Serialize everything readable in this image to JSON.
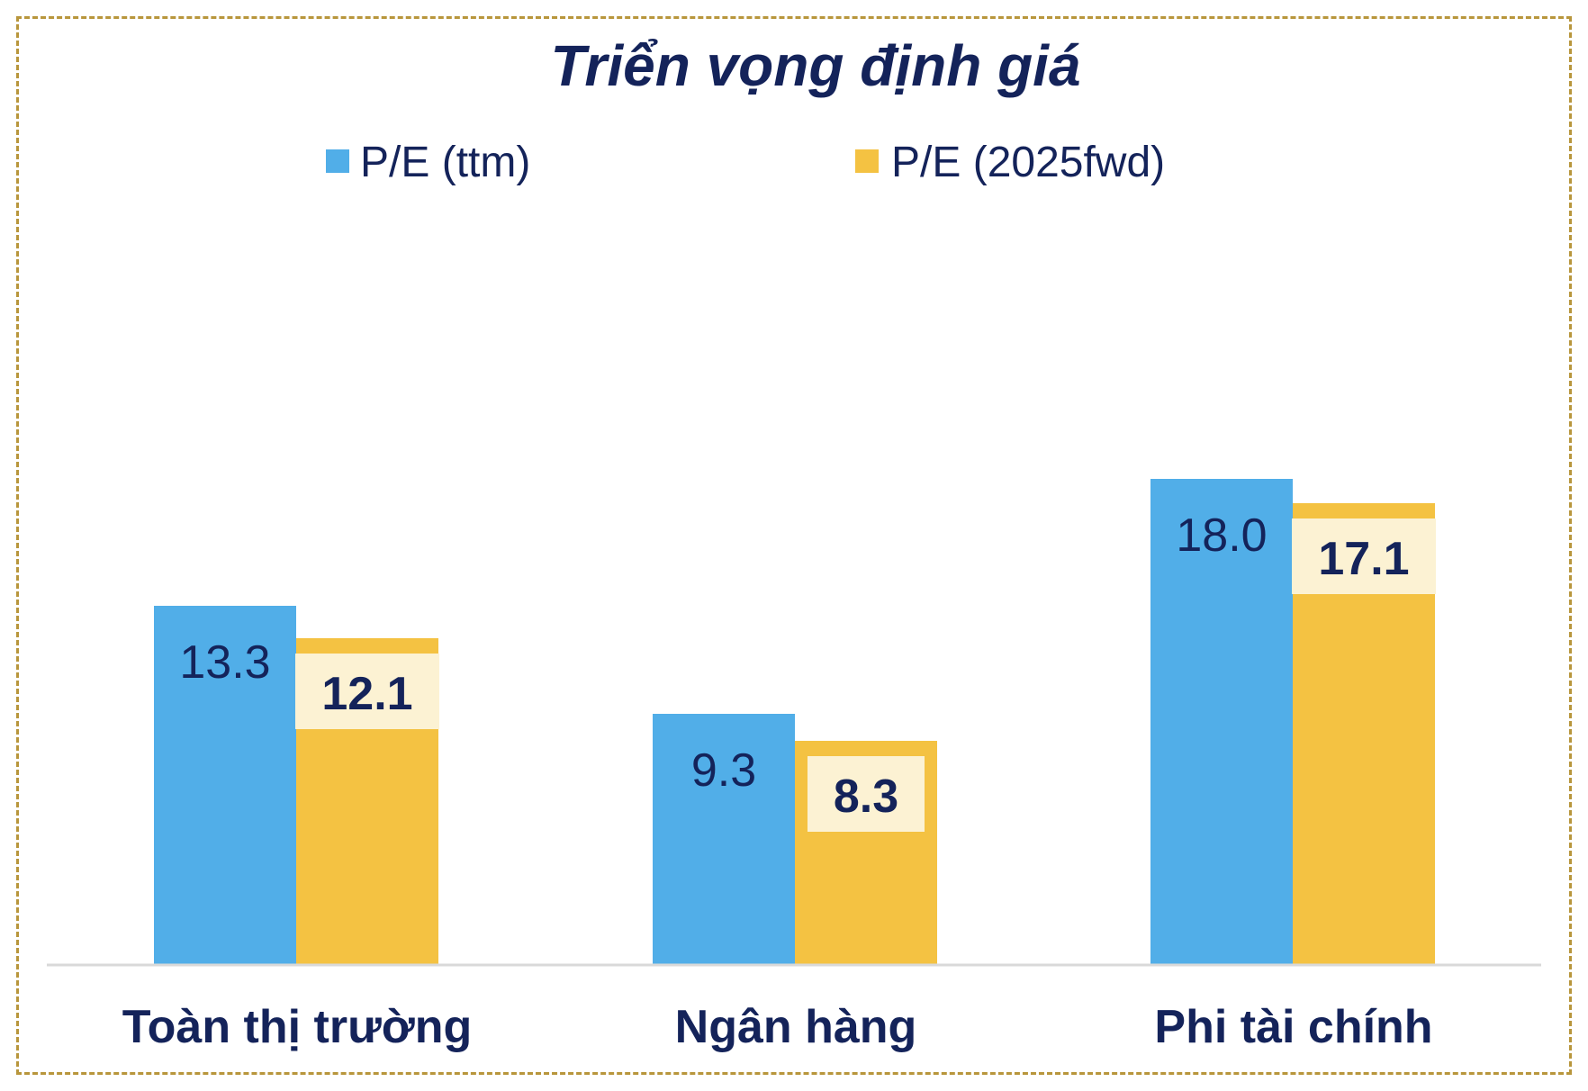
{
  "chart_data": {
    "type": "bar",
    "title": "Triển vọng định giá",
    "categories": [
      "Toàn thị trường",
      "Ngân hàng",
      "Phi tài chính"
    ],
    "series": [
      {
        "name": "P/E (ttm)",
        "values": [
          13.3,
          9.3,
          18.0
        ],
        "labels": [
          "13.3",
          "9.3",
          "18.0"
        ],
        "color": "#51aee8"
      },
      {
        "name": "P/E (2025fwd)",
        "values": [
          12.1,
          8.3,
          17.1
        ],
        "labels": [
          "12.1",
          "8.3",
          "17.1"
        ],
        "color": "#f4c242"
      }
    ],
    "value_label_box_color": "#fcf2d3",
    "axis_color": "#d9d9d9",
    "text_color": "#14235a",
    "ylim": [
      0,
      20
    ],
    "legend_position": "top-center",
    "grid": false
  }
}
